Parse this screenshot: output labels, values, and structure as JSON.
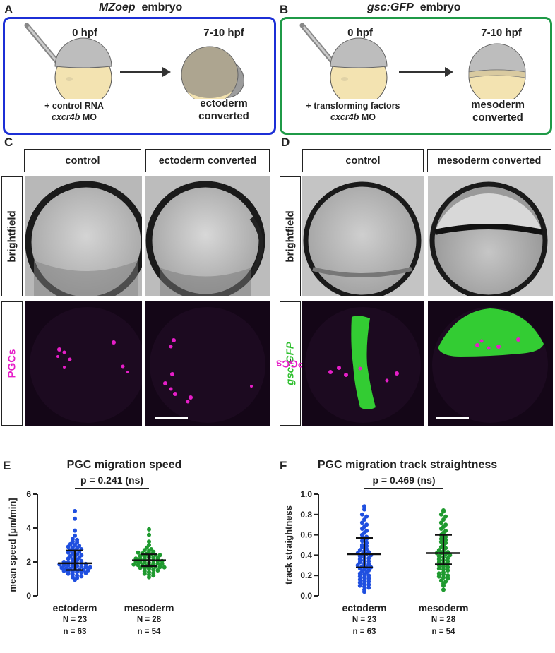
{
  "panelA": {
    "letter": "A",
    "title_italic": "MZoep",
    "title_rest": "embryo",
    "time_start": "0 hpf",
    "time_end": "7-10 hpf",
    "injection_line1": "+ control RNA",
    "injection_line2_italic": "cxcr4b",
    "injection_line2_rest": "MO",
    "outcome_line1": "ectoderm",
    "outcome_line2": "converted",
    "border_color": "#1c2fd6"
  },
  "panelB": {
    "letter": "B",
    "title_italic": "gsc:GFP",
    "title_rest": "embryo",
    "time_start": "0 hpf",
    "time_end": "7-10 hpf",
    "injection_line1": "+ transforming factors",
    "injection_line2_italic": "cxcr4b",
    "injection_line2_rest": "MO",
    "outcome_line1": "mesoderm",
    "outcome_line2": "converted",
    "border_color": "#1f9a47"
  },
  "panelC": {
    "letter": "C",
    "col_control": "control",
    "col_converted": "ectoderm converted",
    "row_brightfield": "brightfield",
    "row_fluor": "PGCs",
    "fluor_color": "#e61ec8"
  },
  "panelD": {
    "letter": "D",
    "col_control": "control",
    "col_converted": "mesoderm converted",
    "row_brightfield": "brightfield",
    "row_fluor_green": "gsc:GFP",
    "row_fluor_sep": ", ",
    "row_fluor_magenta": "PGCs",
    "green_color": "#2fbf2f",
    "magenta_color": "#e61ec8"
  },
  "chart_data": [
    {
      "type": "scatter",
      "panel": "E",
      "title": "PGC migration speed",
      "ylabel": "mean speed [µm/min]",
      "ylim": [
        0,
        6
      ],
      "yticks": [
        0,
        2,
        4,
        6
      ],
      "significance": "p = 0.241 (ns)",
      "groups": [
        {
          "name": "ectoderm",
          "N": "N = 23",
          "n": "n = 63",
          "color": "#1f4fe0",
          "median": 1.92,
          "q1": 1.52,
          "q3": 2.68,
          "values": [
            5.0,
            4.55,
            3.85,
            3.55,
            3.35,
            3.3,
            3.2,
            3.15,
            3.05,
            3.0,
            2.95,
            2.9,
            2.85,
            2.8,
            2.75,
            2.7,
            2.65,
            2.6,
            2.55,
            2.5,
            2.45,
            2.4,
            2.35,
            2.3,
            2.25,
            2.2,
            2.15,
            2.1,
            2.05,
            2.0,
            1.98,
            1.95,
            1.92,
            1.9,
            1.88,
            1.85,
            1.82,
            1.8,
            1.78,
            1.75,
            1.72,
            1.7,
            1.68,
            1.65,
            1.62,
            1.6,
            1.58,
            1.55,
            1.52,
            1.5,
            1.48,
            1.45,
            1.42,
            1.4,
            1.38,
            1.35,
            1.3,
            1.25,
            1.2,
            1.15,
            1.1,
            1.05,
            0.95
          ]
        },
        {
          "name": "mesoderm",
          "N": "N = 28",
          "n": "n = 54",
          "color": "#1f9a2f",
          "median": 2.1,
          "q1": 1.75,
          "q3": 2.45,
          "values": [
            3.92,
            3.6,
            3.2,
            3.0,
            2.85,
            2.75,
            2.7,
            2.65,
            2.6,
            2.55,
            2.5,
            2.48,
            2.45,
            2.42,
            2.4,
            2.35,
            2.3,
            2.28,
            2.25,
            2.22,
            2.2,
            2.18,
            2.15,
            2.12,
            2.1,
            2.08,
            2.05,
            2.02,
            2.0,
            1.98,
            1.95,
            1.92,
            1.9,
            1.88,
            1.85,
            1.82,
            1.8,
            1.78,
            1.75,
            1.72,
            1.7,
            1.68,
            1.65,
            1.62,
            1.6,
            1.55,
            1.5,
            1.45,
            1.4,
            1.35,
            1.3,
            1.25,
            1.2,
            1.1
          ]
        }
      ]
    },
    {
      "type": "scatter",
      "panel": "F",
      "title": "PGC migration track straightness",
      "ylabel": "track straightness",
      "ylim": [
        0,
        1.0
      ],
      "yticks": [
        0.0,
        0.2,
        0.4,
        0.6,
        0.8,
        1.0
      ],
      "significance": "p = 0.469 (ns)",
      "groups": [
        {
          "name": "ectoderm",
          "N": "N = 23",
          "n": "n = 63",
          "color": "#1f4fe0",
          "median": 0.41,
          "q1": 0.28,
          "q3": 0.57,
          "values": [
            0.88,
            0.85,
            0.8,
            0.78,
            0.75,
            0.72,
            0.7,
            0.68,
            0.66,
            0.64,
            0.62,
            0.6,
            0.58,
            0.57,
            0.56,
            0.54,
            0.52,
            0.5,
            0.49,
            0.48,
            0.46,
            0.45,
            0.44,
            0.43,
            0.42,
            0.41,
            0.41,
            0.4,
            0.39,
            0.38,
            0.37,
            0.36,
            0.35,
            0.34,
            0.33,
            0.32,
            0.31,
            0.3,
            0.29,
            0.28,
            0.28,
            0.27,
            0.26,
            0.25,
            0.24,
            0.23,
            0.22,
            0.21,
            0.2,
            0.19,
            0.18,
            0.17,
            0.16,
            0.15,
            0.14,
            0.13,
            0.12,
            0.11,
            0.1,
            0.09,
            0.08,
            0.06,
            0.04
          ]
        },
        {
          "name": "mesoderm",
          "N": "N = 28",
          "n": "n = 54",
          "color": "#1f9a2f",
          "median": 0.42,
          "q1": 0.31,
          "q3": 0.6,
          "values": [
            0.84,
            0.83,
            0.8,
            0.78,
            0.75,
            0.72,
            0.7,
            0.68,
            0.66,
            0.64,
            0.62,
            0.6,
            0.58,
            0.56,
            0.55,
            0.53,
            0.52,
            0.5,
            0.48,
            0.47,
            0.45,
            0.44,
            0.43,
            0.42,
            0.42,
            0.41,
            0.4,
            0.39,
            0.38,
            0.37,
            0.36,
            0.35,
            0.34,
            0.33,
            0.32,
            0.31,
            0.3,
            0.29,
            0.28,
            0.27,
            0.26,
            0.25,
            0.23,
            0.22,
            0.21,
            0.2,
            0.19,
            0.18,
            0.17,
            0.15,
            0.14,
            0.12,
            0.1,
            0.06
          ]
        }
      ]
    }
  ]
}
